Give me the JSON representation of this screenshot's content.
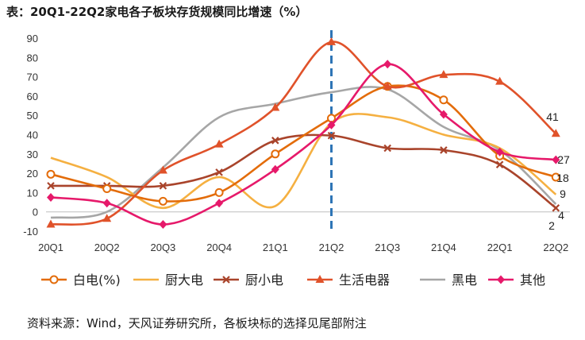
{
  "title": "表：20Q1-22Q2家电各子板块存货规模同比增速（%）",
  "source": "资料来源：Wind，天风证券研究所，各板块标的选择见尾部附注",
  "chart_data": {
    "type": "line",
    "categories": [
      "20Q1",
      "20Q2",
      "20Q3",
      "20Q4",
      "21Q1",
      "21Q2",
      "21Q3",
      "21Q4",
      "22Q1",
      "22Q2"
    ],
    "ylim": [
      -10,
      90
    ],
    "yticks": [
      "-10",
      "0",
      "10",
      "20",
      "30",
      "40",
      "50",
      "60",
      "70",
      "80",
      "90"
    ],
    "marker_line_category": "21Q2",
    "series": [
      {
        "name": "白电(%)",
        "color": "#E36C0A",
        "marker": "open-circle",
        "values": [
          19.5,
          12,
          5.5,
          10,
          30,
          48.5,
          65,
          58,
          29,
          18
        ]
      },
      {
        "name": "厨大电",
        "color": "#F5B041",
        "marker": "none",
        "values": [
          28,
          18,
          2,
          18,
          3,
          46,
          49,
          40,
          33,
          9
        ]
      },
      {
        "name": "厨小电",
        "color": "#A9442B",
        "marker": "x",
        "values": [
          13.5,
          13.5,
          13.5,
          20.5,
          37,
          39.5,
          33,
          32,
          24.5,
          2
        ]
      },
      {
        "name": "生活电器",
        "color": "#E0522A",
        "marker": "triangle",
        "values": [
          -6.5,
          -3.5,
          21.5,
          35,
          54,
          88,
          65,
          71,
          67.5,
          40.5
        ]
      },
      {
        "name": "黑电",
        "color": "#A6A6A6",
        "marker": "none",
        "values": [
          -3,
          0,
          23,
          49,
          56,
          62,
          63.5,
          44,
          32,
          4
        ]
      },
      {
        "name": "其他",
        "color": "#E6196A",
        "marker": "diamond",
        "values": [
          7.5,
          4.5,
          -6.5,
          4.5,
          22,
          45,
          76.5,
          50.5,
          31,
          27
        ]
      }
    ],
    "end_labels": [
      "41",
      "27",
      "18",
      "9",
      "4",
      "2"
    ]
  }
}
